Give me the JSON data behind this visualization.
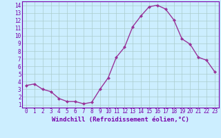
{
  "x": [
    0,
    1,
    2,
    3,
    4,
    5,
    6,
    7,
    8,
    9,
    10,
    11,
    12,
    13,
    14,
    15,
    16,
    17,
    18,
    19,
    20,
    21,
    22,
    23
  ],
  "y": [
    3.5,
    3.7,
    3.0,
    2.7,
    1.8,
    1.4,
    1.4,
    1.1,
    1.3,
    3.0,
    4.5,
    7.2,
    8.5,
    11.2,
    12.6,
    13.8,
    14.0,
    13.5,
    12.1,
    9.6,
    8.9,
    7.2,
    6.8,
    5.3
  ],
  "line_color": "#993399",
  "marker": "D",
  "marker_size": 2,
  "bg_color": "#cceeff",
  "grid_color": "#aacccc",
  "xlabel": "Windchill (Refroidissement éolien,°C)",
  "xlim": [
    -0.5,
    23.5
  ],
  "ylim": [
    0.6,
    14.5
  ],
  "yticks": [
    1,
    2,
    3,
    4,
    5,
    6,
    7,
    8,
    9,
    10,
    11,
    12,
    13,
    14
  ],
  "xticks": [
    0,
    1,
    2,
    3,
    4,
    5,
    6,
    7,
    8,
    9,
    10,
    11,
    12,
    13,
    14,
    15,
    16,
    17,
    18,
    19,
    20,
    21,
    22,
    23
  ],
  "tick_label_fontsize": 5.5,
  "xlabel_fontsize": 6.5,
  "axis_color": "#7700aa",
  "spine_color": "#7700aa",
  "linewidth": 1.0
}
